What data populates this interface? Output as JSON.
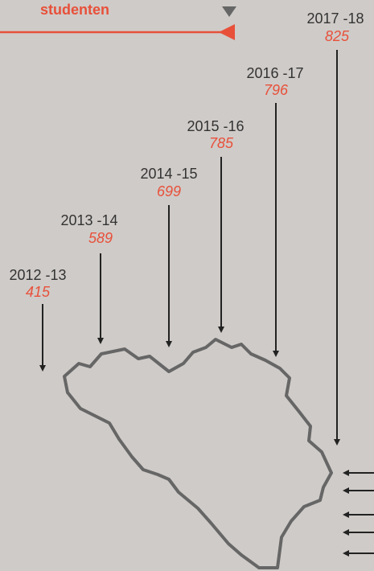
{
  "header": {
    "title": "studenten"
  },
  "items": [
    {
      "label": "2012 -13",
      "value": "415"
    },
    {
      "label": "2013 -14",
      "value": "589"
    },
    {
      "label": "2014 -15",
      "value": "699"
    },
    {
      "label": "2015 -16",
      "value": "785"
    },
    {
      "label": "2016 -17",
      "value": "796"
    },
    {
      "label": "2017 -18",
      "value": "825"
    }
  ]
}
